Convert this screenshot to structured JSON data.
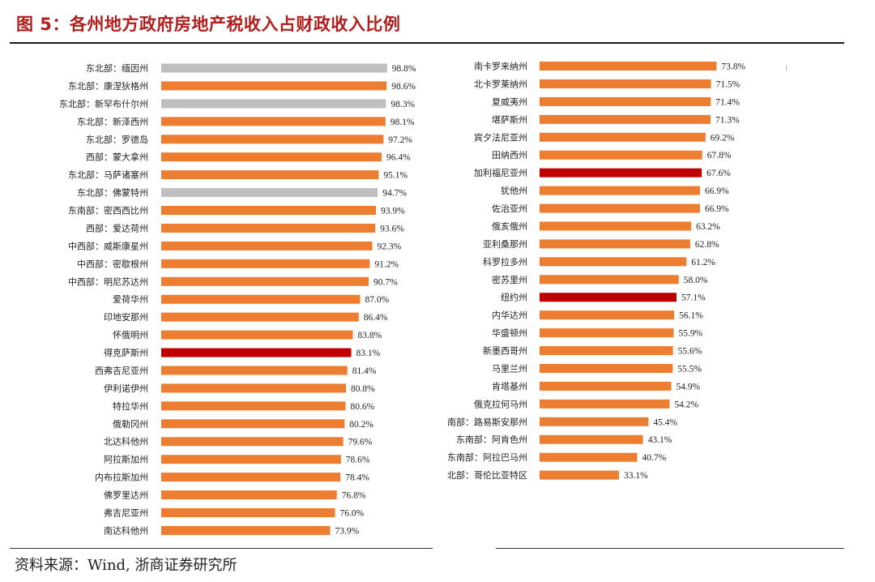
{
  "figure": {
    "title": "图 5：各州地方政府房地产税收入占财政收入比例",
    "source_label": "资料来源：",
    "source_text": "Wind, 浙商证券研究所"
  },
  "colors": {
    "orange": "#ED7D31",
    "gray": "#BFBFBF",
    "red": "#C00000",
    "title": "#B01E1E"
  },
  "chart_data": [
    {
      "type": "bar",
      "orientation": "horizontal",
      "title": "",
      "xlabel": "",
      "ylabel": "",
      "xlim": [
        0,
        100
      ],
      "value_suffix": "%",
      "categories": [
        "东北部：缅因州",
        "东北部：康涅狄格州",
        "东北部：新罕布什尔州",
        "东北部：新泽西州",
        "东北部：罗德岛",
        "西部：蒙大拿州",
        "东北部：马萨诸塞州",
        "东北部：佛蒙特州",
        "东南部：密西西比州",
        "西部：爱达荷州",
        "中西部：威斯康星州",
        "中西部：密歇根州",
        "中西部：明尼苏达州",
        "爱荷华州",
        "印地安那州",
        "怀俄明州",
        "得克萨斯州",
        "西弗吉尼亚州",
        "伊利诺伊州",
        "特拉华州",
        "俄勒冈州",
        "北达科他州",
        "阿拉斯加州",
        "内布拉斯加州",
        "佛罗里达州",
        "弗吉尼亚州",
        "南达科他州"
      ],
      "values": [
        98.8,
        98.6,
        98.3,
        98.1,
        97.2,
        96.4,
        95.1,
        94.7,
        93.9,
        93.6,
        92.3,
        91.2,
        90.7,
        87.0,
        86.4,
        83.8,
        83.1,
        81.4,
        80.8,
        80.6,
        80.2,
        79.6,
        78.6,
        78.4,
        76.8,
        76.0,
        73.9
      ],
      "labels": [
        "98.8%",
        "98.6%",
        "98.3%",
        "98.1%",
        "97.2%",
        "96.4%",
        "95.1%",
        "94.7%",
        "93.9%",
        "93.6%",
        "92.3%",
        "91.2%",
        "90.7%",
        "87.0%",
        "86.4%",
        "83.8%",
        "83.1%",
        "81.4%",
        "80.8%",
        "80.6%",
        "80.2%",
        "79.6%",
        "78.6%",
        "78.4%",
        "76.8%",
        "76.0%",
        "73.9%"
      ],
      "bar_colors": [
        "gray",
        "orange",
        "gray",
        "orange",
        "orange",
        "orange",
        "orange",
        "gray",
        "orange",
        "orange",
        "orange",
        "orange",
        "orange",
        "orange",
        "orange",
        "orange",
        "red",
        "orange",
        "orange",
        "orange",
        "orange",
        "orange",
        "orange",
        "orange",
        "orange",
        "orange",
        "orange"
      ]
    },
    {
      "type": "bar",
      "orientation": "horizontal",
      "title": "",
      "xlabel": "",
      "ylabel": "",
      "xlim": [
        0,
        100
      ],
      "value_suffix": "%",
      "categories": [
        "南卡罗来纳州",
        "北卡罗莱纳州",
        "夏威夷州",
        "堪萨斯州",
        "宾夕法尼亚州",
        "田纳西州",
        "加利福尼亚州",
        "犹他州",
        "佐治亚州",
        "俄亥俄州",
        "亚利桑那州",
        "科罗拉多州",
        "密苏里州",
        "纽约州",
        "内华达州",
        "华盛顿州",
        "新墨西哥州",
        "马里兰州",
        "肯塔基州",
        "俄克拉何马州",
        "南部：路易斯安那州",
        "东南部：阿肯色州",
        "东南部：阿拉巴马州",
        "北部：哥伦比亚特区"
      ],
      "values": [
        73.8,
        71.5,
        71.4,
        71.3,
        69.2,
        67.8,
        67.6,
        66.9,
        66.9,
        63.2,
        62.8,
        61.2,
        58.0,
        57.1,
        56.1,
        55.9,
        55.6,
        55.5,
        54.9,
        54.2,
        45.4,
        43.1,
        40.7,
        33.1
      ],
      "labels": [
        "73.8%",
        "71.5%",
        "71.4%",
        "71.3%",
        "69.2%",
        "67.8%",
        "67.6%",
        "66.9%",
        "66.9%",
        "63.2%",
        "62.8%",
        "61.2%",
        "58.0%",
        "57.1%",
        "56.1%",
        "55.9%",
        "55.6%",
        "55.5%",
        "54.9%",
        "54.2%",
        "45.4%",
        "43.1%",
        "40.7%",
        "33.1%"
      ],
      "bar_colors": [
        "orange",
        "orange",
        "orange",
        "orange",
        "orange",
        "orange",
        "red",
        "orange",
        "orange",
        "orange",
        "orange",
        "orange",
        "orange",
        "red",
        "orange",
        "orange",
        "orange",
        "orange",
        "orange",
        "orange",
        "orange",
        "orange",
        "orange",
        "orange"
      ]
    }
  ]
}
